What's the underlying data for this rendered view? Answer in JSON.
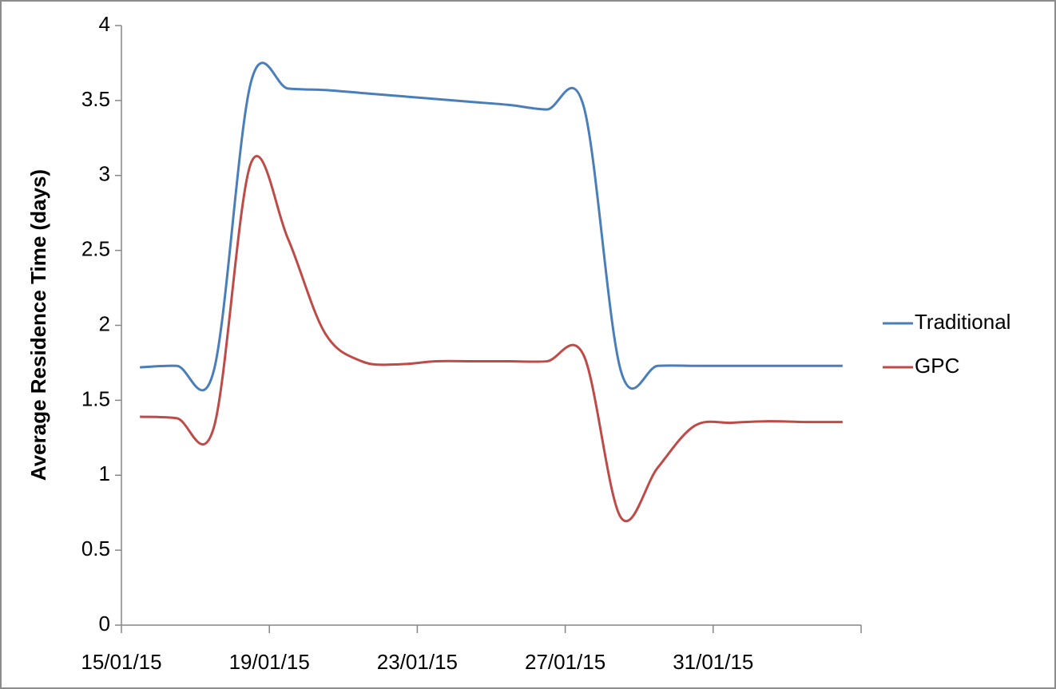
{
  "chart_data": {
    "type": "line",
    "y_label": "Average Residence Time (days)",
    "categories": [
      "15/01/15",
      null,
      null,
      null,
      "19/01/15",
      null,
      null,
      null,
      "23/01/15",
      null,
      null,
      null,
      "27/01/15",
      null,
      null,
      null,
      "31/01/15",
      null,
      null,
      null
    ],
    "series": [
      {
        "name": "Traditional",
        "color": "#4a7ebb",
        "values": [
          1.72,
          1.73,
          1.7,
          3.62,
          3.58,
          3.57,
          3.55,
          3.53,
          3.51,
          3.49,
          3.47,
          3.44,
          3.46,
          1.7,
          1.73,
          1.73,
          1.73,
          1.73,
          1.73,
          1.73
        ]
      },
      {
        "name": "GPC",
        "color": "#be4b48",
        "values": [
          1.39,
          1.38,
          1.32,
          3.08,
          2.58,
          1.95,
          1.76,
          1.74,
          1.76,
          1.76,
          1.76,
          1.76,
          1.8,
          0.72,
          1.05,
          1.33,
          1.35,
          1.36,
          1.355,
          1.355
        ]
      }
    ],
    "ylim": [
      0,
      4
    ],
    "yticks": [
      0,
      0.5,
      1,
      1.5,
      2,
      2.5,
      3,
      3.5,
      4
    ],
    "legend": "right",
    "grid": false
  }
}
